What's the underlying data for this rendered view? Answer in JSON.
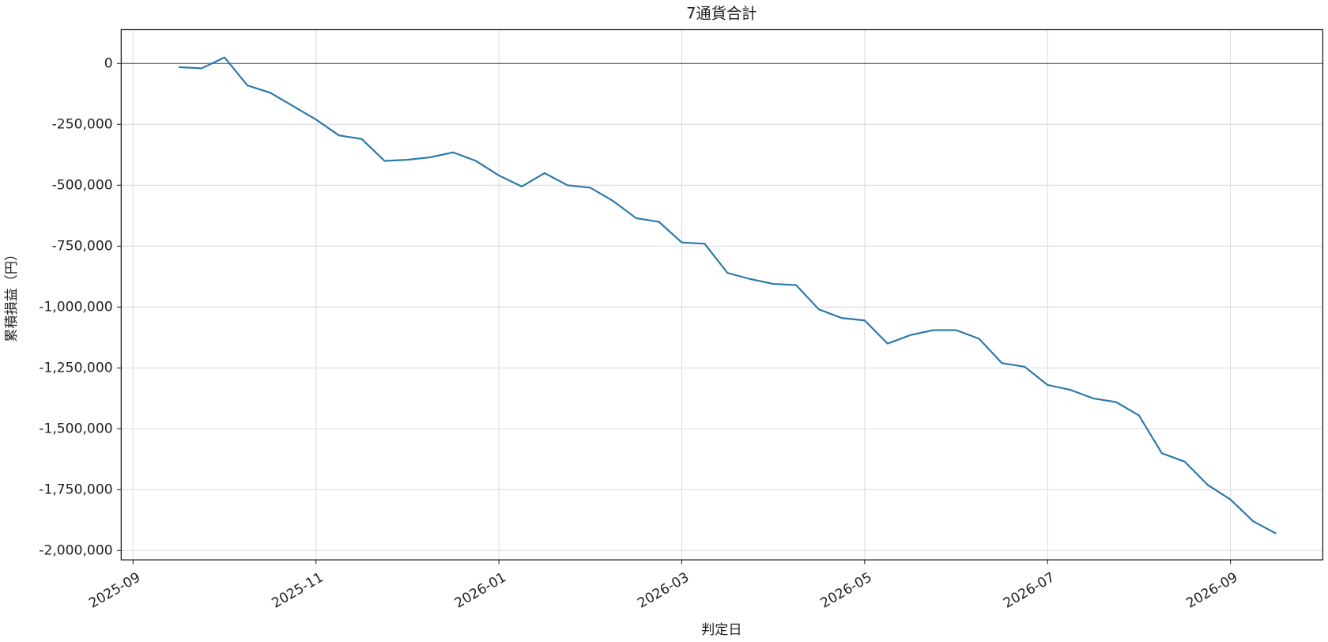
{
  "chart_data": {
    "type": "line",
    "title": "7通貨合計",
    "x_label": "判定日",
    "y_label": "累積損益（円）",
    "categories": [
      "2025-09",
      null,
      null,
      null,
      null,
      null,
      null,
      null,
      "2025-11",
      null,
      null,
      null,
      null,
      null,
      null,
      null,
      "2026-01",
      null,
      null,
      null,
      null,
      null,
      null,
      null,
      "2026-03",
      null,
      null,
      null,
      null,
      null,
      null,
      null,
      "2026-05",
      null,
      null,
      null,
      null,
      null,
      null,
      null,
      "2026-07",
      null,
      null,
      null,
      null,
      null,
      null,
      null,
      "2026-09",
      null,
      null
    ],
    "series": [
      {
        "name": "7通貨合計",
        "color": "#2878a8",
        "values": [
          null,
          null,
          -15000,
          -20000,
          25000,
          -90000,
          -120000,
          -175000,
          -230000,
          -295000,
          -310000,
          -400000,
          -395000,
          -385000,
          -365000,
          -400000,
          -460000,
          -505000,
          -450000,
          -500000,
          -510000,
          -565000,
          -635000,
          -650000,
          -735000,
          -740000,
          -860000,
          -885000,
          -905000,
          -910000,
          -1010000,
          -1045000,
          -1055000,
          -1150000,
          -1115000,
          -1095000,
          -1095000,
          -1130000,
          -1230000,
          -1245000,
          -1320000,
          -1340000,
          -1375000,
          -1390000,
          -1445000,
          -1600000,
          -1635000,
          -1730000,
          -1790000,
          -1880000,
          -1930000
        ]
      }
    ],
    "ylim": [
      -2038000,
      139000
    ],
    "yticks": [
      {
        "value": -2000000,
        "label": "-2,000,000"
      },
      {
        "value": -1750000,
        "label": "-1,750,000"
      },
      {
        "value": -1500000,
        "label": "-1,500,000"
      },
      {
        "value": -1250000,
        "label": "-1,250,000"
      },
      {
        "value": -1000000,
        "label": "-1,000,000"
      },
      {
        "value": -750000,
        "label": "-750,000"
      },
      {
        "value": -500000,
        "label": "-500,000"
      },
      {
        "value": -250000,
        "label": "-250,000"
      },
      0
    ],
    "reference_line": 0,
    "reference_color": "#4a6478",
    "grid": true
  }
}
